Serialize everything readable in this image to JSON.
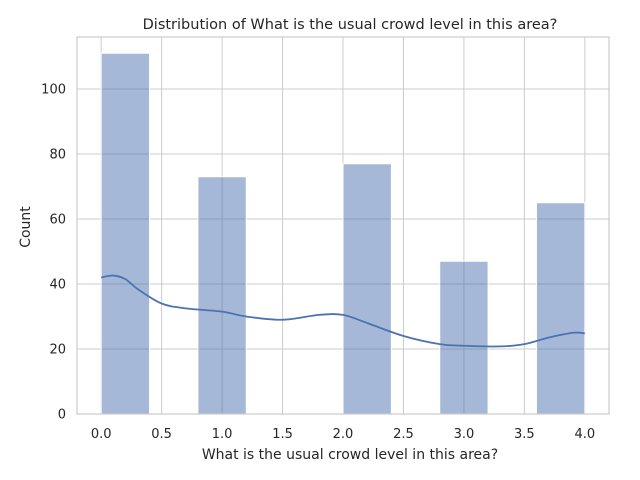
{
  "chart_data": {
    "type": "bar",
    "title": "Distribution of What is the usual crowd level in this area?",
    "xlabel": "What is the usual crowd level in this area?",
    "ylabel": "Count",
    "xlim": [
      -0.2,
      4.2
    ],
    "ylim": [
      0,
      116
    ],
    "xticks": [
      0.0,
      0.5,
      1.0,
      1.5,
      2.0,
      2.5,
      3.0,
      3.5,
      4.0
    ],
    "xtick_labels": [
      "0.0",
      "0.5",
      "1.0",
      "1.5",
      "2.0",
      "2.5",
      "3.0",
      "3.5",
      "4.0"
    ],
    "yticks": [
      0,
      20,
      40,
      60,
      80,
      100
    ],
    "ytick_labels": [
      "0",
      "20",
      "40",
      "60",
      "80",
      "100"
    ],
    "grid": true,
    "histogram": {
      "bin_edges": [
        0.0,
        0.4,
        0.8,
        1.2,
        1.6,
        2.0,
        2.4,
        2.8,
        3.2,
        3.6,
        4.0
      ],
      "counts": [
        111,
        0,
        73,
        0,
        0,
        77,
        0,
        47,
        0,
        65
      ],
      "color": "#4c72b0"
    },
    "kde": {
      "x": [
        0.0,
        0.1,
        0.2,
        0.3,
        0.5,
        0.7,
        1.0,
        1.2,
        1.5,
        1.8,
        2.0,
        2.2,
        2.5,
        2.8,
        3.0,
        3.3,
        3.5,
        3.7,
        3.9,
        4.0
      ],
      "y": [
        42,
        42.6,
        41.5,
        38.5,
        34,
        32.5,
        31.5,
        30,
        29,
        30.5,
        30.5,
        28,
        24,
        21.5,
        21,
        20.8,
        21.5,
        23.5,
        25,
        24.8
      ],
      "color": "#4c72b0"
    }
  }
}
